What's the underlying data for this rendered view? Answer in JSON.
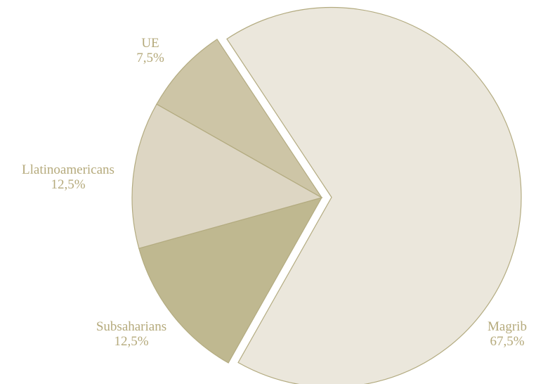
{
  "chart_data": {
    "type": "pie",
    "categories": [
      "Magrib",
      "Subsaharians",
      "Llatinoamericans",
      "UE"
    ],
    "values": [
      67.5,
      12.5,
      12.5,
      7.5
    ],
    "value_labels": [
      "67,5%",
      "12,5%",
      "12,5%",
      "7,5%"
    ],
    "colors": [
      "#ebe7dc",
      "#bfb890",
      "#ddd6c3",
      "#cdc5a6"
    ]
  }
}
